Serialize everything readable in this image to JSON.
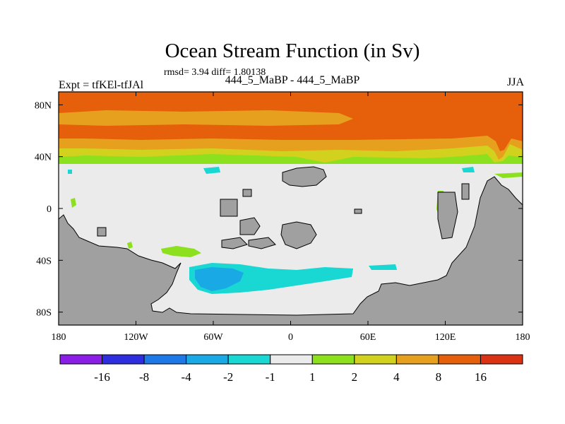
{
  "header": {
    "title": "Ocean Stream Function (in Sv)",
    "stats": "rmsd= 3.94 diff= 1.80138",
    "expt": "Expt = tfKEl-tfJAl",
    "case": "444_5_MaBP - 444_5_MaBP",
    "season": "JJA"
  },
  "chart_data": {
    "type": "heatmap",
    "title": "Ocean Stream Function (in Sv)",
    "xlim": [
      -180,
      180
    ],
    "ylim": [
      -90,
      90
    ],
    "x_ticks": [
      {
        "value": -180,
        "label": "180"
      },
      {
        "value": -120,
        "label": "120W"
      },
      {
        "value": -60,
        "label": "60W"
      },
      {
        "value": 0,
        "label": "0"
      },
      {
        "value": 60,
        "label": "60E"
      },
      {
        "value": 120,
        "label": "120E"
      },
      {
        "value": 180,
        "label": "180"
      }
    ],
    "y_ticks": [
      {
        "value": 80,
        "label": "80N"
      },
      {
        "value": 40,
        "label": "40N"
      },
      {
        "value": 0,
        "label": "0"
      },
      {
        "value": -40,
        "label": "40S"
      },
      {
        "value": -80,
        "label": "80S"
      }
    ],
    "colorbar": {
      "levels": [
        "-16",
        "-8",
        "-4",
        "-2",
        "-1",
        "1",
        "2",
        "4",
        "8",
        "16"
      ],
      "colors": [
        "#8a1ee6",
        "#2e2ee0",
        "#1e78e6",
        "#19aae6",
        "#19d7d2",
        "#ebebeb",
        "#8ce01e",
        "#d2d21e",
        "#e6a01e",
        "#e65f0a",
        "#dc3214"
      ]
    },
    "colors": {
      "land": "#a0a0a0",
      "coast": "#000000",
      "neutral": "#ebebeb"
    },
    "regions": [
      {
        "level": "8 to 16",
        "desc": "northern band",
        "lon": [
          -180,
          180
        ],
        "lat": [
          38,
          88
        ]
      },
      {
        "level": "-4 to -2",
        "desc": "southern gyre",
        "lon": [
          -80,
          50
        ],
        "lat": [
          -70,
          -55
        ]
      },
      {
        "level": "-2 to -1",
        "desc": "southern gyre core",
        "lon": [
          -70,
          -35
        ],
        "lat": [
          -65,
          -55
        ]
      }
    ]
  }
}
